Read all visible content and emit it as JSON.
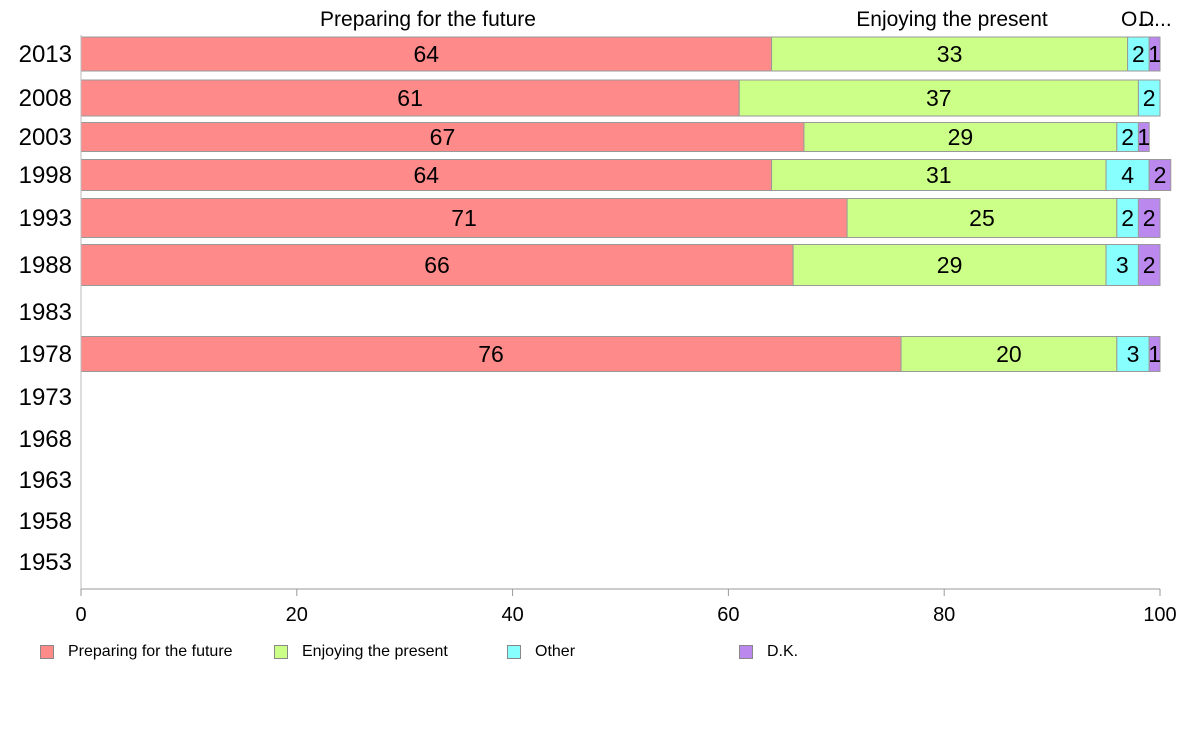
{
  "chart_data": {
    "type": "bar",
    "orientation": "horizontal",
    "stacked": true,
    "categories": [
      "2013",
      "2008",
      "2003",
      "1998",
      "1993",
      "1988",
      "1983",
      "1978",
      "1973",
      "1968",
      "1963",
      "1958",
      "1953"
    ],
    "series": [
      {
        "name": "Preparing for the future",
        "color": "#ff8a8a",
        "values": [
          64,
          61,
          67,
          64,
          71,
          66,
          null,
          76,
          null,
          null,
          null,
          null,
          null
        ]
      },
      {
        "name": "Enjoying the present",
        "color": "#ccff88",
        "values": [
          33,
          37,
          29,
          31,
          25,
          29,
          null,
          20,
          null,
          null,
          null,
          null,
          null
        ]
      },
      {
        "name": "Other",
        "color": "#88ffff",
        "values": [
          2,
          2,
          2,
          4,
          2,
          3,
          null,
          3,
          null,
          null,
          null,
          null,
          null
        ]
      },
      {
        "name": "D.K.",
        "color": "#bb88ee",
        "values": [
          1,
          null,
          1,
          2,
          2,
          2,
          null,
          1,
          null,
          null,
          null,
          null,
          null
        ]
      }
    ],
    "header_labels": [
      "Preparing for the future",
      "Enjoying the present",
      "O...",
      "D..."
    ],
    "xlim": [
      0,
      100
    ],
    "xticks": [
      "0",
      "20",
      "40",
      "60",
      "80",
      "100"
    ],
    "legend_position": "bottom",
    "grid": false
  }
}
